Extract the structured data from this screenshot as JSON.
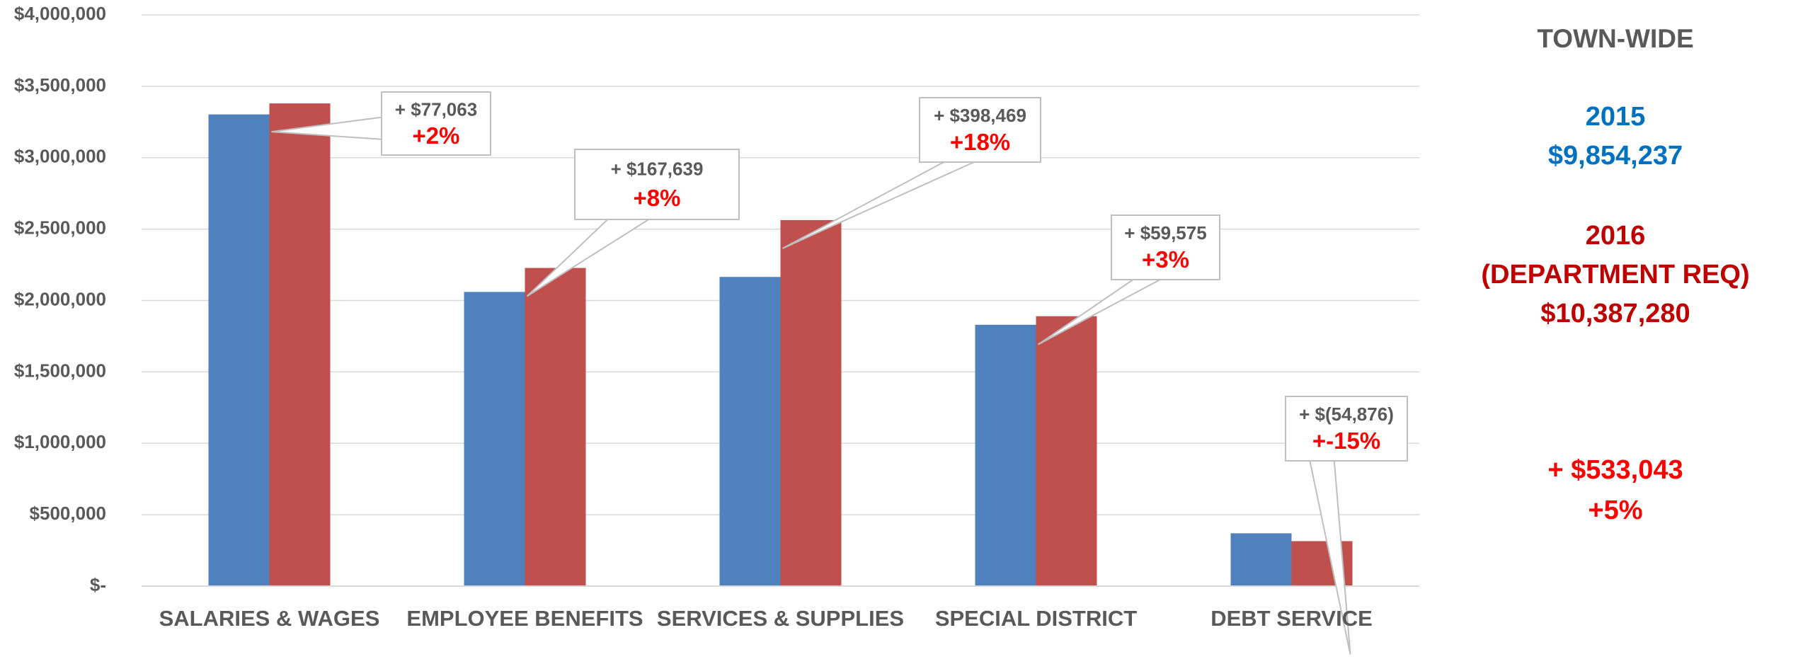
{
  "chart_data": {
    "type": "bar",
    "categories": [
      "SALARIES & WAGES",
      "EMPLOYEE BENEFITS",
      "SERVICES & SUPPLIES",
      "SPECIAL DISTRICT",
      "DEBT SERVICE"
    ],
    "series": [
      {
        "name": "2015",
        "color": "#4f81bd",
        "values": [
          3303000,
          2060000,
          2165000,
          1830000,
          370000
        ]
      },
      {
        "name": "2016",
        "color": "#c0504d",
        "values": [
          3380000,
          2228000,
          2563000,
          1890000,
          315000
        ]
      }
    ],
    "ylim": [
      0,
      4000000
    ],
    "yticks": [
      {
        "value": 0,
        "label": "$-"
      },
      {
        "value": 500000,
        "label": "$500,000"
      },
      {
        "value": 1000000,
        "label": "$1,000,000"
      },
      {
        "value": 1500000,
        "label": "$1,500,000"
      },
      {
        "value": 2000000,
        "label": "$2,000,000"
      },
      {
        "value": 2500000,
        "label": "$2,500,000"
      },
      {
        "value": 3000000,
        "label": "$3,000,000"
      },
      {
        "value": 3500000,
        "label": "$3,500,000"
      },
      {
        "value": 4000000,
        "label": "$4,000,000"
      }
    ],
    "grid": true,
    "annotations": [
      {
        "change": "+ $77,063",
        "percent": "+2%"
      },
      {
        "change": "+ $167,639",
        "percent": "+8%"
      },
      {
        "change": "+ $398,469",
        "percent": "+18%"
      },
      {
        "change": "+ $59,575",
        "percent": "+3%"
      },
      {
        "change": "+ $(54,876)",
        "percent": "+-15%"
      }
    ],
    "panel": {
      "title": "TOWN-WIDE",
      "total_2015": "$9,854,237",
      "note_2016": "(DEPARTMENT REQ)",
      "total_2016": "$10,387,280",
      "change": "+ $533,043",
      "change_pct": "+5%"
    }
  }
}
